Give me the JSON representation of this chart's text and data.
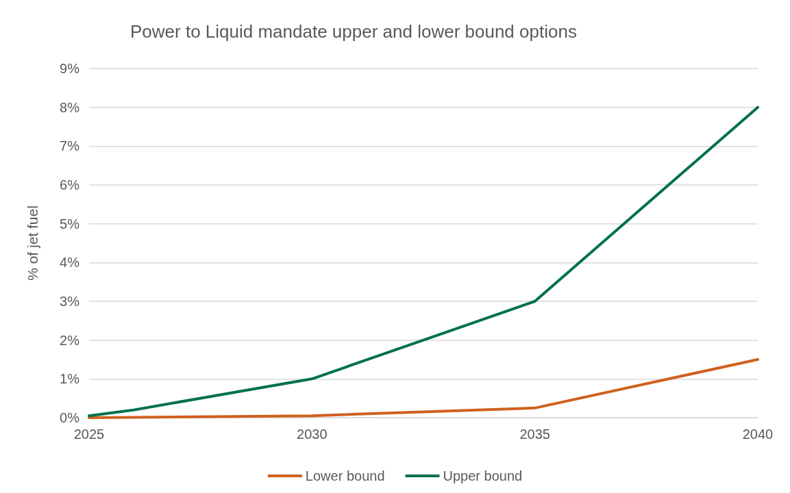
{
  "chart_data": {
    "type": "line",
    "title": "Power to Liquid mandate upper and lower bound options",
    "ylabel": "% of jet fuel",
    "series": [
      {
        "name": "Lower bound",
        "color": "#d0601e",
        "x": [
          2025,
          2030,
          2035,
          2040
        ],
        "values": [
          0,
          0.05,
          0.25,
          1.5
        ]
      },
      {
        "name": "Upper bound",
        "color": "#00704f",
        "x": [
          2025,
          2026,
          2030,
          2035,
          2040
        ],
        "values": [
          0.05,
          0.2,
          1,
          3,
          8
        ]
      }
    ],
    "xlim": [
      2025,
      2040
    ],
    "xticks": [
      2025,
      2030,
      2035,
      2040
    ],
    "ylim": [
      0,
      9
    ],
    "yticks": [
      {
        "value": 0,
        "label": "0%"
      },
      {
        "value": 1,
        "label": "1%"
      },
      {
        "value": 2,
        "label": "2%"
      },
      {
        "value": 3,
        "label": "3%"
      },
      {
        "value": 4,
        "label": "4%"
      },
      {
        "value": 5,
        "label": "5%"
      },
      {
        "value": 6,
        "label": "6%"
      },
      {
        "value": 7,
        "label": "7%"
      },
      {
        "value": 8,
        "label": "8%"
      },
      {
        "value": 9,
        "label": "9%"
      }
    ],
    "grid": "y",
    "legend": "bottom",
    "marker": "none",
    "line_style": "solid"
  }
}
